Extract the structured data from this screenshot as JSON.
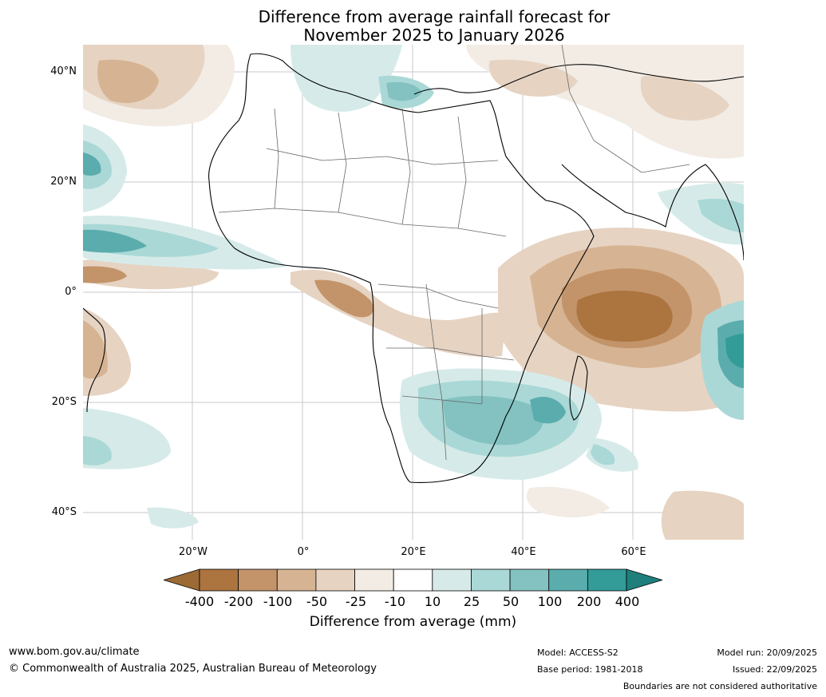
{
  "title_line1": "Difference from average rainfall forecast for",
  "title_line2": "November 2025 to January 2026",
  "lat_labels": [
    "40°N",
    "20°N",
    "0°",
    "20°S",
    "40°S"
  ],
  "lon_labels": [
    "20°W",
    "0°",
    "20°E",
    "40°E",
    "60°E"
  ],
  "colorbar": {
    "title": "Difference from average (mm)",
    "ticks": [
      "-400",
      "-200",
      "-100",
      "-50",
      "-25",
      "-10",
      "10",
      "25",
      "50",
      "100",
      "200",
      "400"
    ],
    "colors": [
      "#9c6a35",
      "#ac743f",
      "#c3946a",
      "#d6b493",
      "#e6d3c2",
      "#f2ece5",
      "#ffffff",
      "#d6ebe9",
      "#aad8d6",
      "#83c2c1",
      "#5aadac",
      "#339b98",
      "#1f7f7c"
    ]
  },
  "footer": {
    "website": "www.bom.gov.au/climate",
    "copyright": "© Commonwealth of Australia 2025, Australian Bureau of Meteorology",
    "model": "Model: ACCESS-S2",
    "base_period": "Base period: 1981-2018",
    "model_run": "Model run: 20/09/2025",
    "issued": "Issued: 22/09/2025",
    "disclaimer": "Boundaries are not considered authoritative"
  }
}
